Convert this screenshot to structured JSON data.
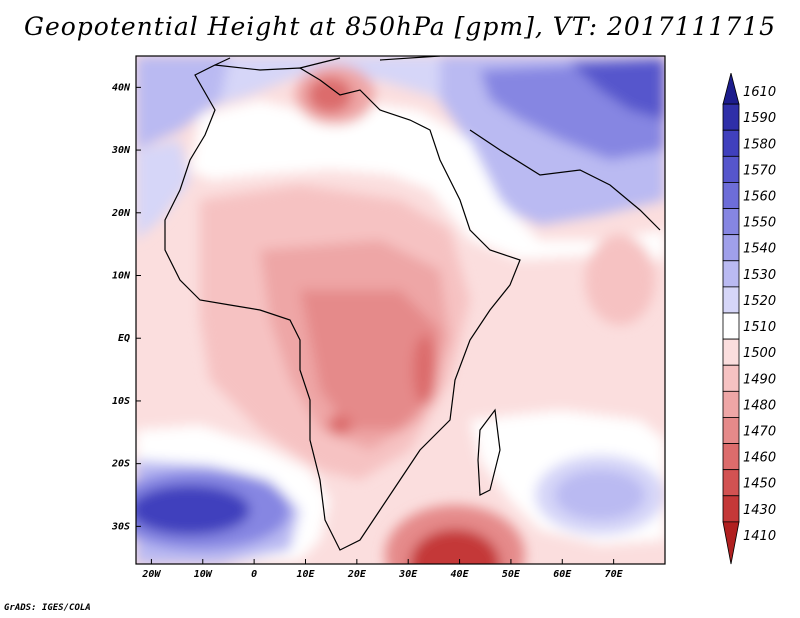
{
  "title": "Geopotential Height at 850hPa [gpm], VT: 2017111715",
  "credit": "GrADS: IGES/COLA",
  "map": {
    "projection": "lat-lon",
    "lon_range": [
      -23,
      80
    ],
    "lat_range": [
      -36,
      45
    ],
    "lon_ticks": [
      {
        "value": -20,
        "label": "20W"
      },
      {
        "value": -10,
        "label": "10W"
      },
      {
        "value": 0,
        "label": "0"
      },
      {
        "value": 10,
        "label": "10E"
      },
      {
        "value": 20,
        "label": "20E"
      },
      {
        "value": 30,
        "label": "30E"
      },
      {
        "value": 40,
        "label": "40E"
      },
      {
        "value": 50,
        "label": "50E"
      },
      {
        "value": 60,
        "label": "60E"
      },
      {
        "value": 70,
        "label": "70E"
      }
    ],
    "lat_ticks": [
      {
        "value": 40,
        "label": "40N"
      },
      {
        "value": 30,
        "label": "30N"
      },
      {
        "value": 20,
        "label": "20N"
      },
      {
        "value": 10,
        "label": "10N"
      },
      {
        "value": 0,
        "label": "EQ"
      },
      {
        "value": -10,
        "label": "10S"
      },
      {
        "value": -20,
        "label": "20S"
      },
      {
        "value": -30,
        "label": "30S"
      }
    ]
  },
  "colorbar": {
    "labels": [
      "1610",
      "1590",
      "1580",
      "1570",
      "1560",
      "1550",
      "1540",
      "1530",
      "1520",
      "1510",
      "1500",
      "1490",
      "1480",
      "1470",
      "1460",
      "1450",
      "1430",
      "1410"
    ],
    "colors": [
      "#1c1c8c",
      "#2f2fa8",
      "#4040bd",
      "#5656cc",
      "#6d6dd8",
      "#8686e2",
      "#a0a0ea",
      "#babaf2",
      "#d6d6f8",
      "#ffffff",
      "#fbdede",
      "#f6c2c2",
      "#eea6a6",
      "#e58a8a",
      "#dc6c6c",
      "#d25252",
      "#c43838",
      "#b02020"
    ]
  }
}
